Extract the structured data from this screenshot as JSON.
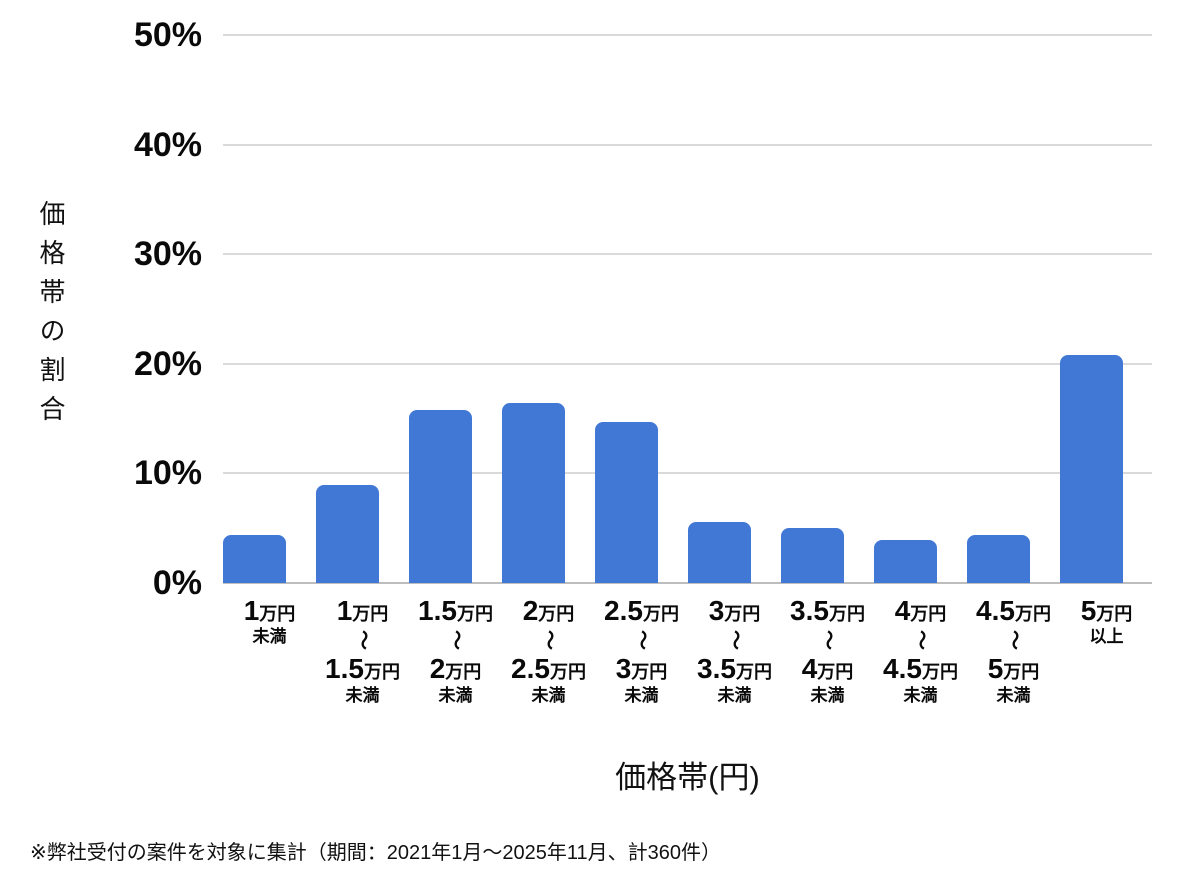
{
  "footnote": "※弊社受付の案件を対象に集計（期間：2021年1月～2025年11月、計360件）",
  "chart_data": {
    "type": "bar",
    "title": "",
    "xlabel": "価格帯(円)",
    "ylabel": "価格帯の割合",
    "ylim": [
      0,
      50
    ],
    "grid": true,
    "legend_position": "none",
    "bar_color": "#4178d6",
    "gridline_color": "#dadada",
    "axis_line_color": "#bdbdbd",
    "range_separator": "〜",
    "y_ticks": [
      {
        "value": 50,
        "label": "50%"
      },
      {
        "value": 40,
        "label": "40%"
      },
      {
        "value": 30,
        "label": "30%"
      },
      {
        "value": 20,
        "label": "20%"
      },
      {
        "value": 10,
        "label": "10%"
      },
      {
        "value": 0,
        "label": "0%"
      }
    ],
    "categories": [
      {
        "num": "1",
        "unit": "万円",
        "num2": null,
        "unit2": null,
        "suffix": "未満"
      },
      {
        "num": "1",
        "unit": "万円",
        "num2": "1.5",
        "unit2": "万円",
        "suffix": "未満"
      },
      {
        "num": "1.5",
        "unit": "万円",
        "num2": "2",
        "unit2": "万円",
        "suffix": "未満"
      },
      {
        "num": "2",
        "unit": "万円",
        "num2": "2.5",
        "unit2": "万円",
        "suffix": "未満"
      },
      {
        "num": "2.5",
        "unit": "万円",
        "num2": "3",
        "unit2": "万円",
        "suffix": "未満"
      },
      {
        "num": "3",
        "unit": "万円",
        "num2": "3.5",
        "unit2": "万円",
        "suffix": "未満"
      },
      {
        "num": "3.5",
        "unit": "万円",
        "num2": "4",
        "unit2": "万円",
        "suffix": "未満"
      },
      {
        "num": "4",
        "unit": "万円",
        "num2": "4.5",
        "unit2": "万円",
        "suffix": "未満"
      },
      {
        "num": "4.5",
        "unit": "万円",
        "num2": "5",
        "unit2": "万円",
        "suffix": "未満"
      },
      {
        "num": "5",
        "unit": "万円",
        "num2": null,
        "unit2": null,
        "suffix": "以上"
      }
    ],
    "values": [
      4.4,
      8.9,
      15.8,
      16.4,
      14.7,
      5.6,
      5.0,
      3.9,
      4.4,
      20.8
    ]
  }
}
